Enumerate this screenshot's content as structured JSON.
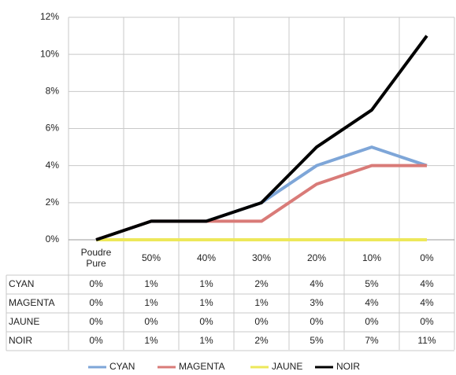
{
  "chart_data": {
    "type": "line",
    "categories": [
      "Poudre Pure",
      "50%",
      "40%",
      "30%",
      "20%",
      "10%",
      "0%"
    ],
    "series": [
      {
        "name": "CYAN",
        "color": "#7ea6d8",
        "values": [
          0,
          1,
          1,
          2,
          4,
          5,
          4
        ],
        "value_labels": [
          "0%",
          "1%",
          "1%",
          "2%",
          "4%",
          "5%",
          "4%"
        ]
      },
      {
        "name": "MAGENTA",
        "color": "#d97b78",
        "values": [
          0,
          1,
          1,
          1,
          3,
          4,
          4
        ],
        "value_labels": [
          "0%",
          "1%",
          "1%",
          "1%",
          "3%",
          "4%",
          "4%"
        ]
      },
      {
        "name": "JAUNE",
        "color": "#ede85a",
        "values": [
          0,
          0,
          0,
          0,
          0,
          0,
          0
        ],
        "value_labels": [
          "0%",
          "0%",
          "0%",
          "0%",
          "0%",
          "0%",
          "0%"
        ]
      },
      {
        "name": "NOIR",
        "color": "#000000",
        "values": [
          0,
          1,
          1,
          2,
          5,
          7,
          11
        ],
        "value_labels": [
          "0%",
          "1%",
          "1%",
          "2%",
          "5%",
          "7%",
          "11%"
        ]
      }
    ],
    "ylim": [
      0,
      12
    ],
    "yticks": [
      {
        "value": 0,
        "label": "0%"
      },
      {
        "value": 2,
        "label": "2%"
      },
      {
        "value": 4,
        "label": "4%"
      },
      {
        "value": 6,
        "label": "6%"
      },
      {
        "value": 8,
        "label": "8%"
      },
      {
        "value": 10,
        "label": "10%"
      },
      {
        "value": 12,
        "label": "12%"
      }
    ],
    "grid": true,
    "legend": "bottom"
  }
}
